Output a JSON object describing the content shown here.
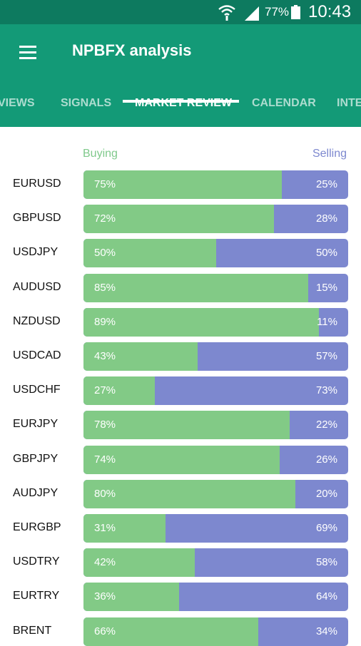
{
  "status_bar": {
    "battery": "77%",
    "time": "10:43"
  },
  "app_bar": {
    "title": "NPBFX analysis"
  },
  "tabs": [
    {
      "label": "VIEWS",
      "active": false
    },
    {
      "label": "SIGNALS",
      "active": false
    },
    {
      "label": "MARKET REVIEW",
      "active": true
    },
    {
      "label": "CALENDAR",
      "active": false
    },
    {
      "label": "INTE",
      "active": false
    }
  ],
  "legend": {
    "buying": "Buying",
    "selling": "Selling"
  },
  "colors": {
    "status_bar": "#0d7a5f",
    "app_bar": "#139a77",
    "buying": "#82ca86",
    "selling": "#7d88cf"
  },
  "market": [
    {
      "pair": "EURUSD",
      "buy": "75%",
      "sell": "25%",
      "buy_value": 75
    },
    {
      "pair": "GBPUSD",
      "buy": "72%",
      "sell": "28%",
      "buy_value": 72
    },
    {
      "pair": "USDJPY",
      "buy": "50%",
      "sell": "50%",
      "buy_value": 50
    },
    {
      "pair": "AUDUSD",
      "buy": "85%",
      "sell": "15%",
      "buy_value": 85
    },
    {
      "pair": "NZDUSD",
      "buy": "89%",
      "sell": "11%",
      "buy_value": 89
    },
    {
      "pair": "USDCAD",
      "buy": "43%",
      "sell": "57%",
      "buy_value": 43
    },
    {
      "pair": "USDCHF",
      "buy": "27%",
      "sell": "73%",
      "buy_value": 27
    },
    {
      "pair": "EURJPY",
      "buy": "78%",
      "sell": "22%",
      "buy_value": 78
    },
    {
      "pair": "GBPJPY",
      "buy": "74%",
      "sell": "26%",
      "buy_value": 74
    },
    {
      "pair": "AUDJPY",
      "buy": "80%",
      "sell": "20%",
      "buy_value": 80
    },
    {
      "pair": "EURGBP",
      "buy": "31%",
      "sell": "69%",
      "buy_value": 31
    },
    {
      "pair": "USDTRY",
      "buy": "42%",
      "sell": "58%",
      "buy_value": 42
    },
    {
      "pair": "EURTRY",
      "buy": "36%",
      "sell": "64%",
      "buy_value": 36
    },
    {
      "pair": "BRENT",
      "buy": "66%",
      "sell": "34%",
      "buy_value": 66
    }
  ]
}
